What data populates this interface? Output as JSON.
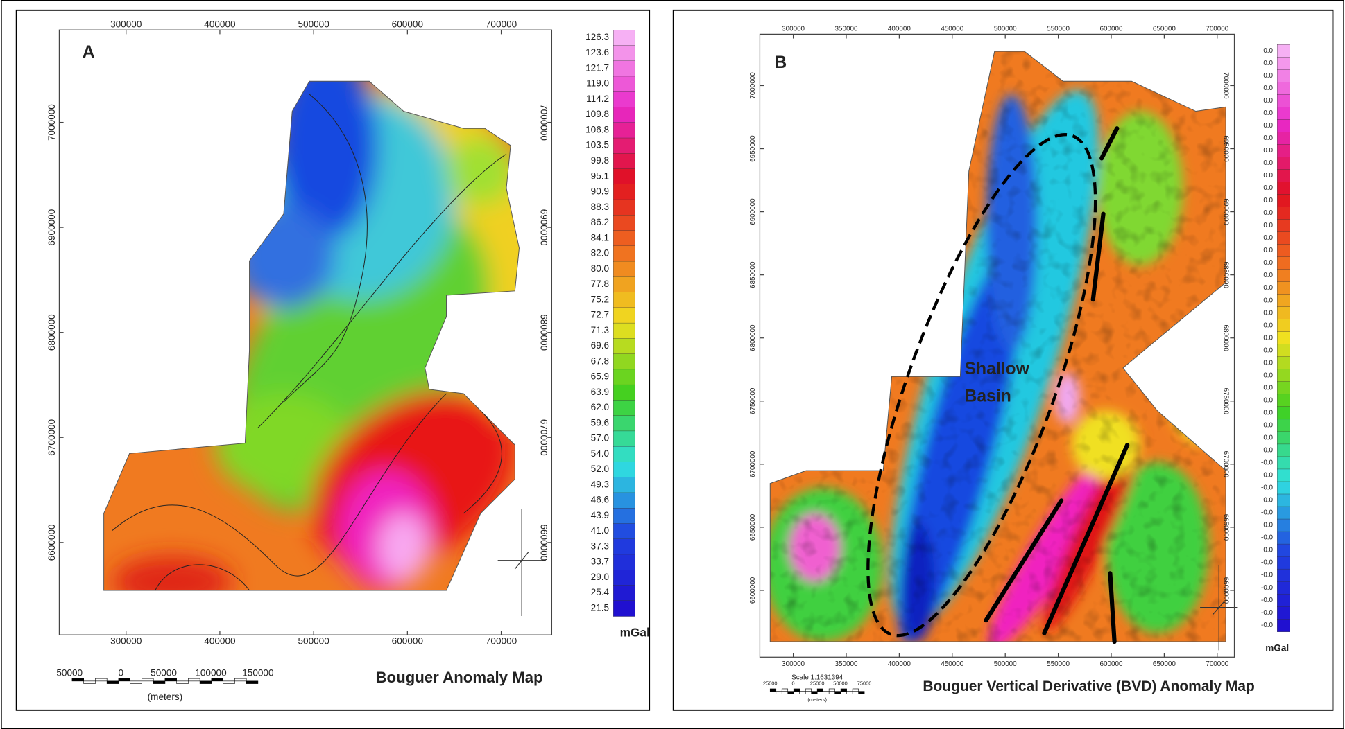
{
  "panels": [
    {
      "label": "A",
      "title": "Bouguer Anomaly Map",
      "x_ticks": [
        "300000",
        "400000",
        "500000",
        "600000",
        "700000"
      ],
      "y_ticks": [
        "7000000",
        "6900000",
        "6800000",
        "6700000",
        "6600000"
      ],
      "colorbar": {
        "labels": [
          "126.3",
          "123.6",
          "121.7",
          "119.0",
          "114.2",
          "109.8",
          "106.8",
          "103.5",
          "99.8",
          "95.1",
          "90.9",
          "88.3",
          "86.2",
          "84.1",
          "82.0",
          "80.0",
          "77.8",
          "75.2",
          "72.7",
          "71.3",
          "69.6",
          "67.8",
          "65.9",
          "63.9",
          "62.0",
          "59.6",
          "57.0",
          "54.0",
          "52.0",
          "49.3",
          "46.6",
          "43.9",
          "41.0",
          "37.3",
          "33.7",
          "29.0",
          "25.4",
          "21.5"
        ],
        "unit": "mGal"
      },
      "scale_bar": {
        "labels": [
          "50000",
          "0",
          "50000",
          "100000",
          "150000"
        ],
        "unit": "(meters)"
      }
    },
    {
      "label": "B",
      "title": "Bouguer Vertical Derivative (BVD) Anomaly Map",
      "x_ticks": [
        "300000",
        "350000",
        "400000",
        "450000",
        "500000",
        "550000",
        "600000",
        "650000",
        "700000"
      ],
      "y_ticks": [
        "7000000",
        "6950000",
        "6900000",
        "6850000",
        "6800000",
        "6750000",
        "6700000",
        "6650000",
        "6600000"
      ],
      "colorbar": {
        "labels": [
          "0.0",
          "0.0",
          "0.0",
          "0.0",
          "0.0",
          "0.0",
          "0.0",
          "0.0",
          "0.0",
          "0.0",
          "0.0",
          "0.0",
          "0.0",
          "0.0",
          "0.0",
          "0.0",
          "0.0",
          "0.0",
          "0.0",
          "0.0",
          "0.0",
          "0.0",
          "0.0",
          "0.0",
          "0.0",
          "0.0",
          "0.0",
          "0.0",
          "0.0",
          "0.0",
          "0.0",
          "0.0",
          "-0.0",
          "-0.0",
          "-0.0",
          "-0.0",
          "-0.0",
          "-0.0",
          "-0.0",
          "-0.0",
          "-0.0",
          "-0.0",
          "-0.0",
          "-0.0",
          "-0.0",
          "-0.0",
          "-0.0"
        ],
        "unit": "mGal"
      },
      "scale_bar": {
        "scale": "Scale 1:1631394",
        "labels": [
          "25000",
          "0",
          "25000",
          "50000",
          "75000"
        ],
        "unit": "(meters)"
      },
      "annotation": [
        "Shallow",
        "Basin"
      ]
    }
  ]
}
